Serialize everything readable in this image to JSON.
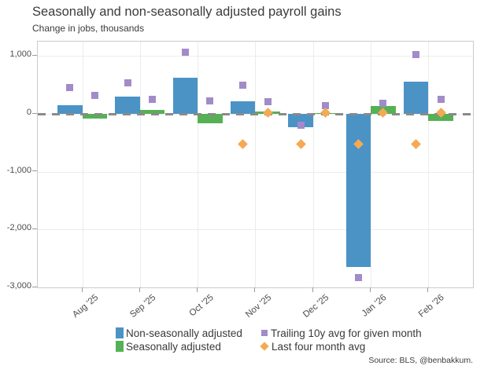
{
  "header": {
    "title": "Seasonally and non-seasonally adjusted payroll gains",
    "subtitle": "Change in jobs, thousands"
  },
  "footer": {
    "source": "Source: BLS, @benbakkum."
  },
  "legend": {
    "position": "below",
    "items": [
      {
        "label": "Non-seasonally adjusted",
        "shape": "rect",
        "color": "#4b93c5"
      },
      {
        "label": "Trailing 10y avg for given month",
        "shape": "square",
        "color": "#a28bc9"
      },
      {
        "label": "Seasonally adjusted",
        "shape": "rect",
        "color": "#55b154"
      },
      {
        "label": "Last four month avg",
        "shape": "diamond",
        "color": "#f5a952"
      }
    ]
  },
  "chart_data": {
    "type": "bar",
    "title": "Seasonally and non-seasonally adjusted payroll gains",
    "subtitle": "Change in jobs, thousands",
    "xlabel": "",
    "ylabel": "Change in jobs, thousands",
    "categories": [
      "Aug '25",
      "Sep '25",
      "Oct '25",
      "Nov '25",
      "Dec '25",
      "Jan '26",
      "Feb '26"
    ],
    "series": [
      {
        "key": "nsa",
        "name": "Non-seasonally adjusted",
        "glyph": "bar",
        "color": "#4b93c5",
        "values": [
          145,
          295,
          620,
          220,
          -230,
          -2650,
          555
        ]
      },
      {
        "key": "sa",
        "name": "Seasonally adjusted",
        "glyph": "bar",
        "color": "#55b154",
        "values": [
          -75,
          70,
          -165,
          35,
          20,
          135,
          -120
        ]
      },
      {
        "key": "trailing-10y-avg",
        "name": "Trailing 10y avg for given month",
        "glyph": "square",
        "color": "#a28bc9",
        "over_nsa": [
          450,
          535,
          1060,
          500,
          -200,
          -2830,
          1030
        ],
        "over_sa": [
          325,
          255,
          230,
          205,
          145,
          190,
          250
        ]
      },
      {
        "key": "last-4mo-avg",
        "name": "Last four month avg",
        "glyph": "diamond",
        "color": "#f5a952",
        "over_nsa": [
          null,
          null,
          null,
          -525,
          -525,
          -525,
          -525
        ],
        "over_sa": [
          null,
          null,
          null,
          15,
          15,
          15,
          15
        ]
      }
    ],
    "ylim": [
      -3000,
      1250
    ],
    "yticks": [
      {
        "value": 1000,
        "label": "1,000"
      },
      {
        "value": 0,
        "label": "0"
      },
      {
        "value": -1000,
        "label": "-1,000"
      },
      {
        "value": -2000,
        "label": "-2,000"
      },
      {
        "value": -3000,
        "label": "-3,000"
      }
    ],
    "grid": true,
    "zero_line": {
      "style": "dashed",
      "color": "#8a8a8a"
    },
    "legend_position": "below"
  }
}
